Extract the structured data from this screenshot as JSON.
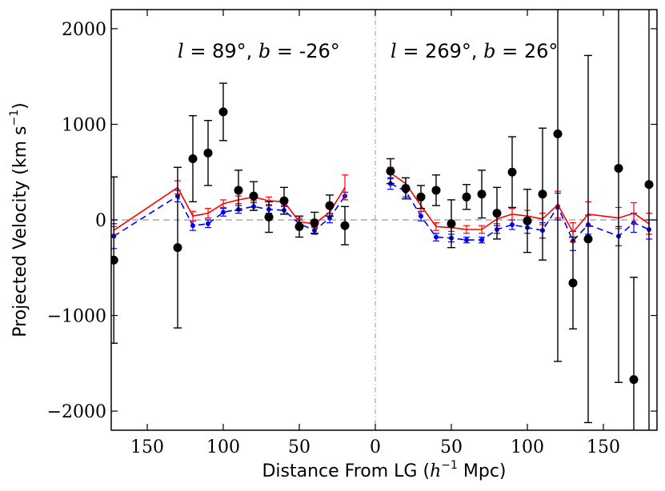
{
  "chart_data": {
    "type": "scatter",
    "xlabel": "Distance From LG (h⁻¹ Mpc)",
    "ylabel": "Projected Velocity (km s⁻¹)",
    "xticks": [
      "150",
      "100",
      "50",
      "0",
      "50",
      "100",
      "150"
    ],
    "yticks": [
      "−2000",
      "−1000",
      "0",
      "1000",
      "2000"
    ],
    "ylim": [
      -2200,
      2200
    ],
    "annotations": {
      "left": "l = 89°, b = -26°",
      "right": "l = 269°, b = 26°"
    },
    "note": "x is a folded distance axis: left panel distance increases leftward from 0, right panel increases rightward from 0",
    "left_panel": {
      "distance": [
        172,
        130,
        120,
        110,
        100,
        90,
        80,
        70,
        60,
        50,
        40,
        30,
        20
      ],
      "observed": [
        -420,
        -290,
        640,
        700,
        1130,
        310,
        250,
        30,
        200,
        -70,
        -30,
        150,
        -60
      ],
      "observed_err": [
        870,
        840,
        450,
        340,
        300,
        210,
        150,
        160,
        140,
        110,
        110,
        110,
        200
      ],
      "red_model": [
        -110,
        340,
        40,
        70,
        170,
        210,
        240,
        200,
        190,
        -20,
        -40,
        80,
        340
      ],
      "red_err": [
        40,
        70,
        50,
        50,
        40,
        40,
        40,
        40,
        40,
        40,
        40,
        40,
        130
      ],
      "blue_model": [
        -170,
        250,
        -60,
        -40,
        80,
        110,
        140,
        110,
        100,
        -40,
        -110,
        20,
        250
      ],
      "blue_err": [
        130,
        60,
        50,
        40,
        40,
        40,
        40,
        40,
        40,
        40,
        40,
        50,
        40
      ]
    },
    "right_panel": {
      "distance": [
        10,
        20,
        30,
        40,
        50,
        60,
        70,
        80,
        90,
        100,
        110,
        120,
        130,
        140,
        160,
        170,
        180
      ],
      "observed": [
        510,
        330,
        240,
        310,
        -40,
        240,
        270,
        70,
        500,
        -10,
        270,
        900,
        -660,
        -200,
        540,
        -1670,
        370
      ],
      "observed_err": [
        130,
        110,
        120,
        160,
        250,
        130,
        250,
        270,
        370,
        330,
        690,
        2380,
        480,
        1920,
        2240,
        1070,
        2600
      ],
      "red_model": [
        490,
        380,
        150,
        -70,
        -80,
        -100,
        -100,
        10,
        60,
        40,
        10,
        160,
        -130,
        60,
        20,
        70,
        -40
      ],
      "red_err": [
        60,
        60,
        60,
        40,
        40,
        40,
        40,
        50,
        60,
        60,
        60,
        140,
        100,
        130,
        110,
        110,
        110
      ],
      "blue_model": [
        380,
        300,
        40,
        -180,
        -190,
        -210,
        -210,
        -100,
        -50,
        -80,
        -110,
        140,
        -220,
        -50,
        -170,
        -30,
        -100
      ],
      "blue_err": [
        60,
        60,
        50,
        40,
        40,
        30,
        30,
        40,
        50,
        60,
        80,
        140,
        100,
        100,
        100,
        100,
        100
      ]
    },
    "reference_line_y": 0,
    "colors": {
      "observed": "#000000",
      "red_model": "#ff0000",
      "blue_model": "#0000ff",
      "reference": "#aaaaaa"
    }
  }
}
